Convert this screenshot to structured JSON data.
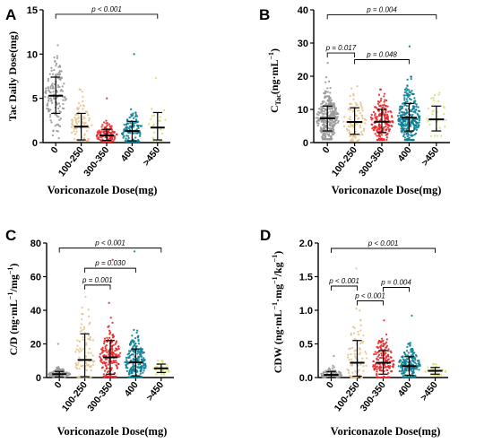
{
  "chart_data": [
    {
      "panel": "A",
      "type": "scatter",
      "ylabel": "Tac Daily Dose(mg)",
      "xlabel": "Voriconazole Dose(mg)",
      "categories": [
        "0",
        "100-250",
        "300-350",
        "400",
        ">450"
      ],
      "ylim": [
        0,
        15
      ],
      "yticks": [
        0,
        5,
        10,
        15
      ],
      "colors": [
        "#9a9a9a",
        "#e7c48f",
        "#e8292b",
        "#0d7f93",
        "#dede72"
      ],
      "groups": [
        {
          "mean": 5.3,
          "sd_low": 3.3,
          "sd_high": 7.4,
          "min": 0.5,
          "max": 11,
          "n": 140
        },
        {
          "mean": 1.8,
          "sd_low": 0.3,
          "sd_high": 3.3,
          "min": 0.2,
          "max": 6,
          "n": 90
        },
        {
          "mean": 0.8,
          "sd_low": 0.25,
          "sd_high": 1.5,
          "min": 0.1,
          "max": 5,
          "n": 110
        },
        {
          "mean": 1.3,
          "sd_low": 0.2,
          "sd_high": 2.4,
          "min": 0.1,
          "max": 10,
          "n": 120
        },
        {
          "mean": 1.7,
          "sd_low": 0.3,
          "sd_high": 3.4,
          "min": 0.2,
          "max": 7.3,
          "n": 25
        }
      ],
      "comparisons": [
        {
          "from": 0,
          "to": 4,
          "label": "p < 0.001",
          "y": 14.5
        }
      ]
    },
    {
      "panel": "B",
      "type": "scatter",
      "ylabel_main": "C",
      "ylabel_sub": "Tac",
      "ylabel_rest": "(ng·mL",
      "ylabel_sup": "−1",
      "ylabel_end": ")",
      "xlabel": "Voriconazole Dose(mg)",
      "categories": [
        "0",
        "100-250",
        "300-350",
        "400",
        ">450"
      ],
      "ylim": [
        0,
        40
      ],
      "yticks": [
        0,
        10,
        20,
        30,
        40
      ],
      "colors": [
        "#9a9a9a",
        "#e7c48f",
        "#e8292b",
        "#0d7f93",
        "#dede72"
      ],
      "groups": [
        {
          "mean": 7.3,
          "sd_low": 3.5,
          "sd_high": 11.0,
          "min": 1,
          "max": 24,
          "n": 330
        },
        {
          "mean": 6.2,
          "sd_low": 2.5,
          "sd_high": 10.5,
          "min": 0.5,
          "max": 17,
          "n": 100
        },
        {
          "mean": 6.3,
          "sd_low": 3.0,
          "sd_high": 10.0,
          "min": 0.8,
          "max": 16,
          "n": 180
        },
        {
          "mean": 7.5,
          "sd_low": 3.5,
          "sd_high": 11.8,
          "min": 0.8,
          "max": 29,
          "n": 300
        },
        {
          "mean": 7.0,
          "sd_low": 3.5,
          "sd_high": 11.0,
          "min": 2,
          "max": 15,
          "n": 30
        }
      ],
      "comparisons": [
        {
          "from": 0,
          "to": 4,
          "label": "p = 0.004",
          "y": 38.5
        },
        {
          "from": 0,
          "to": 1,
          "label": "p = 0.017",
          "y": 27.0
        },
        {
          "from": 1,
          "to": 3,
          "label": "p = 0.048",
          "y": 25.0
        }
      ]
    },
    {
      "panel": "C",
      "type": "scatter",
      "ylabel_main": "C/D (ng·mL",
      "ylabel_sup1": "−1",
      "ylabel_mid": "/mg",
      "ylabel_sup2": "−1",
      "ylabel_end": ")",
      "xlabel": "Voriconazole Dose(mg)",
      "categories": [
        "0",
        "100-250",
        "300-350",
        "400",
        ">450"
      ],
      "ylim": [
        0,
        80
      ],
      "yticks": [
        0,
        20,
        40,
        60,
        80
      ],
      "colors": [
        "#9a9a9a",
        "#e7c48f",
        "#e8292b",
        "#0d7f93",
        "#dede72"
      ],
      "groups": [
        {
          "mean": 2.0,
          "sd_low": 0.3,
          "sd_high": 3.6,
          "min": 0.2,
          "max": 20,
          "n": 130
        },
        {
          "mean": 10.5,
          "sd_low": 0.5,
          "sd_high": 26.0,
          "min": 0.3,
          "max": 48,
          "n": 90
        },
        {
          "mean": 12.0,
          "sd_low": 2.0,
          "sd_high": 22.0,
          "min": 0.5,
          "max": 70,
          "n": 170
        },
        {
          "mean": 9.0,
          "sd_low": 1.0,
          "sd_high": 17.0,
          "min": 0.3,
          "max": 75,
          "n": 220
        },
        {
          "mean": 5.5,
          "sd_low": 3.0,
          "sd_high": 8.0,
          "min": 2,
          "max": 10,
          "n": 30
        }
      ],
      "comparisons": [
        {
          "from": 0,
          "to": 4,
          "label": "p < 0.001",
          "y": 77
        },
        {
          "from": 1,
          "to": 3,
          "label": "p = 0.030",
          "y": 65
        },
        {
          "from": 1,
          "to": 2,
          "label": "p = 0.001",
          "y": 55
        }
      ]
    },
    {
      "panel": "D",
      "type": "scatter",
      "ylabel_main": "CDW (ng·mL",
      "ylabel_sup1": "−1",
      "ylabel_mid": "·mg",
      "ylabel_sup2": "−1",
      "ylabel_mid2": "/kg",
      "ylabel_sup3": "−1",
      "ylabel_end": ")",
      "xlabel": "Voriconazole Dose(mg)",
      "categories": [
        "0",
        "100-250",
        "300-350",
        "400",
        ">450"
      ],
      "ylim": [
        0,
        2.0
      ],
      "yticks": [
        0.0,
        0.5,
        1.0,
        1.5,
        2.0
      ],
      "tickfmt": "1",
      "colors": [
        "#9a9a9a",
        "#e7c48f",
        "#e8292b",
        "#0d7f93",
        "#dede72"
      ],
      "groups": [
        {
          "mean": 0.04,
          "sd_low": 0.0,
          "sd_high": 0.09,
          "min": 0.0,
          "max": 0.32,
          "n": 100
        },
        {
          "mean": 0.22,
          "sd_low": 0.02,
          "sd_high": 0.55,
          "min": 0.0,
          "max": 1.62,
          "n": 90
        },
        {
          "mean": 0.22,
          "sd_low": 0.05,
          "sd_high": 0.4,
          "min": 0.0,
          "max": 0.85,
          "n": 160
        },
        {
          "mean": 0.17,
          "sd_low": 0.03,
          "sd_high": 0.31,
          "min": 0.0,
          "max": 0.92,
          "n": 200
        },
        {
          "mean": 0.1,
          "sd_low": 0.05,
          "sd_high": 0.15,
          "min": 0.03,
          "max": 0.2,
          "n": 30
        }
      ],
      "comparisons": [
        {
          "from": 0,
          "to": 4,
          "label": "p < 0.001",
          "y": 1.92
        },
        {
          "from": 0,
          "to": 1,
          "label": "p < 0.001",
          "y": 1.36
        },
        {
          "from": 2,
          "to": 3,
          "label": "p = 0.004",
          "y": 1.34
        },
        {
          "from": 1,
          "to": 2,
          "label": "p < 0.001",
          "y": 1.14
        }
      ]
    }
  ]
}
